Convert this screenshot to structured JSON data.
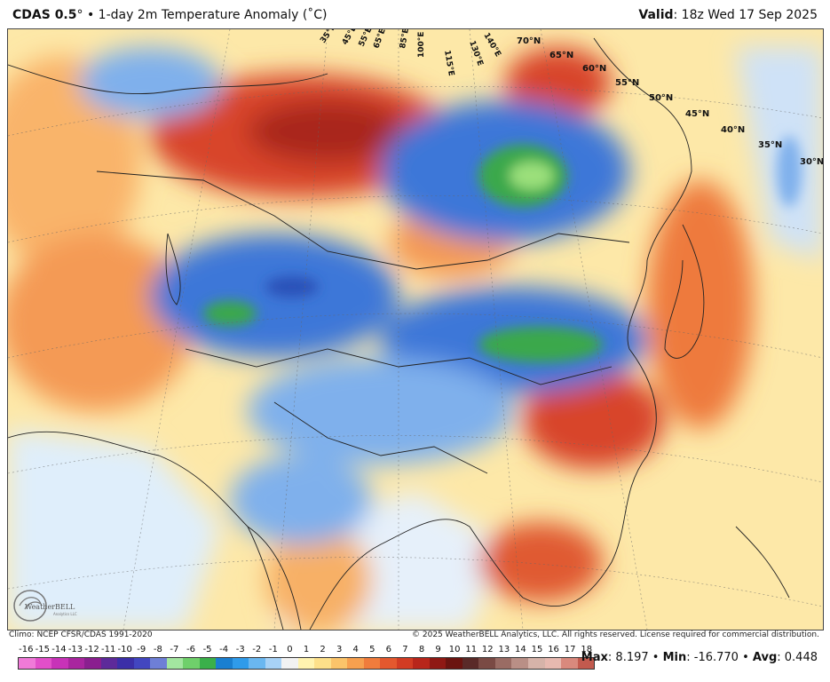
{
  "header": {
    "model": "CDAS 0.5",
    "model_suffix": "°",
    "bullet": " • ",
    "product": "1-day 2m Temperature Anomaly (˚C)",
    "valid_label": "Valid",
    "valid_value": ": 18z Wed 17 Sep 2025"
  },
  "map": {
    "lat_labels": [
      "70°N",
      "65°N",
      "60°N",
      "55°N",
      "50°N",
      "45°N",
      "40°N",
      "35°N",
      "30°N"
    ],
    "lon_labels": [
      "35°E",
      "45°E",
      "55°E",
      "65°E",
      "85°E",
      "100°E",
      "115°E",
      "130°E",
      "140°E"
    ],
    "colors": {
      "ocean": "#dfeefb",
      "warm1": "#fde8a8",
      "warm2": "#f9b46b",
      "warm3": "#ee7a3e",
      "warm4": "#d8442a",
      "warm5": "#a9271f",
      "cool1": "#c7dcf6",
      "cool2": "#7fb0ec",
      "cool3": "#3c77d8",
      "cool4": "#2a51b8",
      "green1": "#3aa84b",
      "green2": "#9be07b",
      "neutral": "#f4f6fb"
    }
  },
  "logo": {
    "text": "WeatherBELL",
    "subtext": "Analytics LLC"
  },
  "footer": {
    "climo": "Climo: NCEP CFSR/CDAS 1991-2020",
    "copyright": "© 2025 WeatherBELL Analytics, LLC. All rights reserved. License required for commercial distribution."
  },
  "colorbar": {
    "labels": [
      "-16",
      "-15",
      "-14",
      "-13",
      "-12",
      "-11",
      "-10",
      "-9",
      "-8",
      "-7",
      "-6",
      "-5",
      "-4",
      "-3",
      "-2",
      "-1",
      "0",
      "1",
      "2",
      "3",
      "4",
      "5",
      "6",
      "7",
      "8",
      "9",
      "10",
      "11",
      "12",
      "13",
      "14",
      "15",
      "16",
      "17",
      "18"
    ],
    "colors": [
      "#f07ad8",
      "#e24fc9",
      "#c832b8",
      "#a9259f",
      "#8a1f8f",
      "#5d2a9a",
      "#3b2fa8",
      "#4246c0",
      "#6e7fd6",
      "#a3e6a0",
      "#6fd06b",
      "#3ab04a",
      "#1a7fd0",
      "#2f9bea",
      "#6ab7f0",
      "#a8d2f6",
      "#f2f2f2",
      "#fff3b0",
      "#fde08a",
      "#fbc46a",
      "#f7a04f",
      "#f07c3c",
      "#e4582e",
      "#d23c23",
      "#b8261b",
      "#8f1914",
      "#6b1410",
      "#5a2a28",
      "#7a4a44",
      "#9a6c64",
      "#b98f86",
      "#d6b3a9",
      "#e7b9b0",
      "#d9897d",
      "#c25a4e"
    ]
  },
  "stats": {
    "max_label": "Max",
    "max_value": ": 8.197",
    "sep1": " • ",
    "min_label": "Min",
    "min_value": ": -16.770",
    "sep2": " • ",
    "avg_label": "Avg",
    "avg_value": ": 0.448"
  }
}
